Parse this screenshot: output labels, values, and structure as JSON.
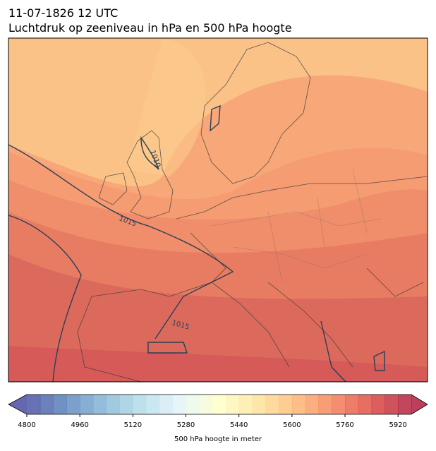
{
  "title": [
    "11-07-1826 12 UTC",
    "Luchtdruk op zeeniveau in hPa en 500 hPa hoogte"
  ],
  "map": {
    "contour_labels": [
      "1010",
      "1015",
      "1015"
    ]
  },
  "colorbar": {
    "label": "500 hPa hoogte in meter",
    "lim": [
      4800,
      5960
    ],
    "level_step": 40,
    "ticks": [
      4800,
      4960,
      5120,
      5280,
      5440,
      5600,
      5760,
      5920
    ]
  }
}
